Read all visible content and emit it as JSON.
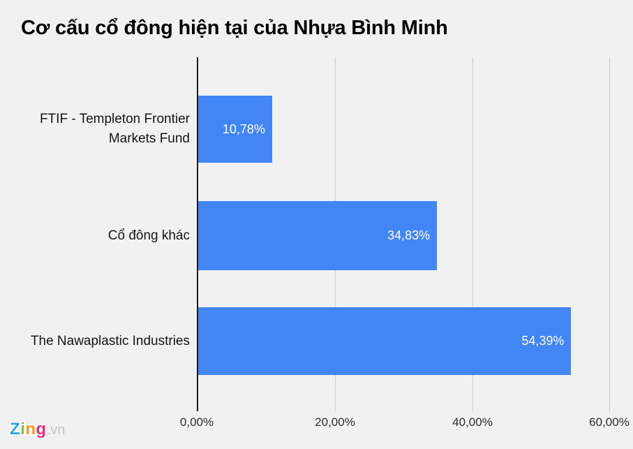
{
  "chart_data": {
    "type": "bar",
    "orientation": "horizontal",
    "title": "Cơ cấu cổ đông hiện tại của Nhựa Bình Minh",
    "categories": [
      "FTIF - Templeton Frontier Markets Fund",
      "Cổ đông khác",
      "The Nawaplastic Industries"
    ],
    "values": [
      10.78,
      34.83,
      54.39
    ],
    "value_labels": [
      "10,78%",
      "34,83%",
      "54,39%"
    ],
    "unit": "%",
    "xlim": [
      0,
      60
    ],
    "x_ticks": [
      0,
      20,
      40,
      60
    ],
    "x_tick_labels": [
      "0,00%",
      "20,00%",
      "40,00%",
      "60,00%"
    ],
    "grid": true,
    "legend": false,
    "bar_color": "#4285f4",
    "value_label_color": "#ffffff",
    "background_color": "#f1f1f2",
    "gridline_color": "#cbcbcb",
    "axis_line_color": "#1c1c1c"
  },
  "logo": {
    "letters": [
      {
        "char": "Z",
        "color": "#29a3e2"
      },
      {
        "char": "i",
        "color": "#7fc241"
      },
      {
        "char": "n",
        "color": "#f89b1c"
      },
      {
        "char": "g",
        "color": "#ee2a7b"
      }
    ],
    "suffix": ".vn",
    "suffix_color": "#c4c4c7"
  }
}
